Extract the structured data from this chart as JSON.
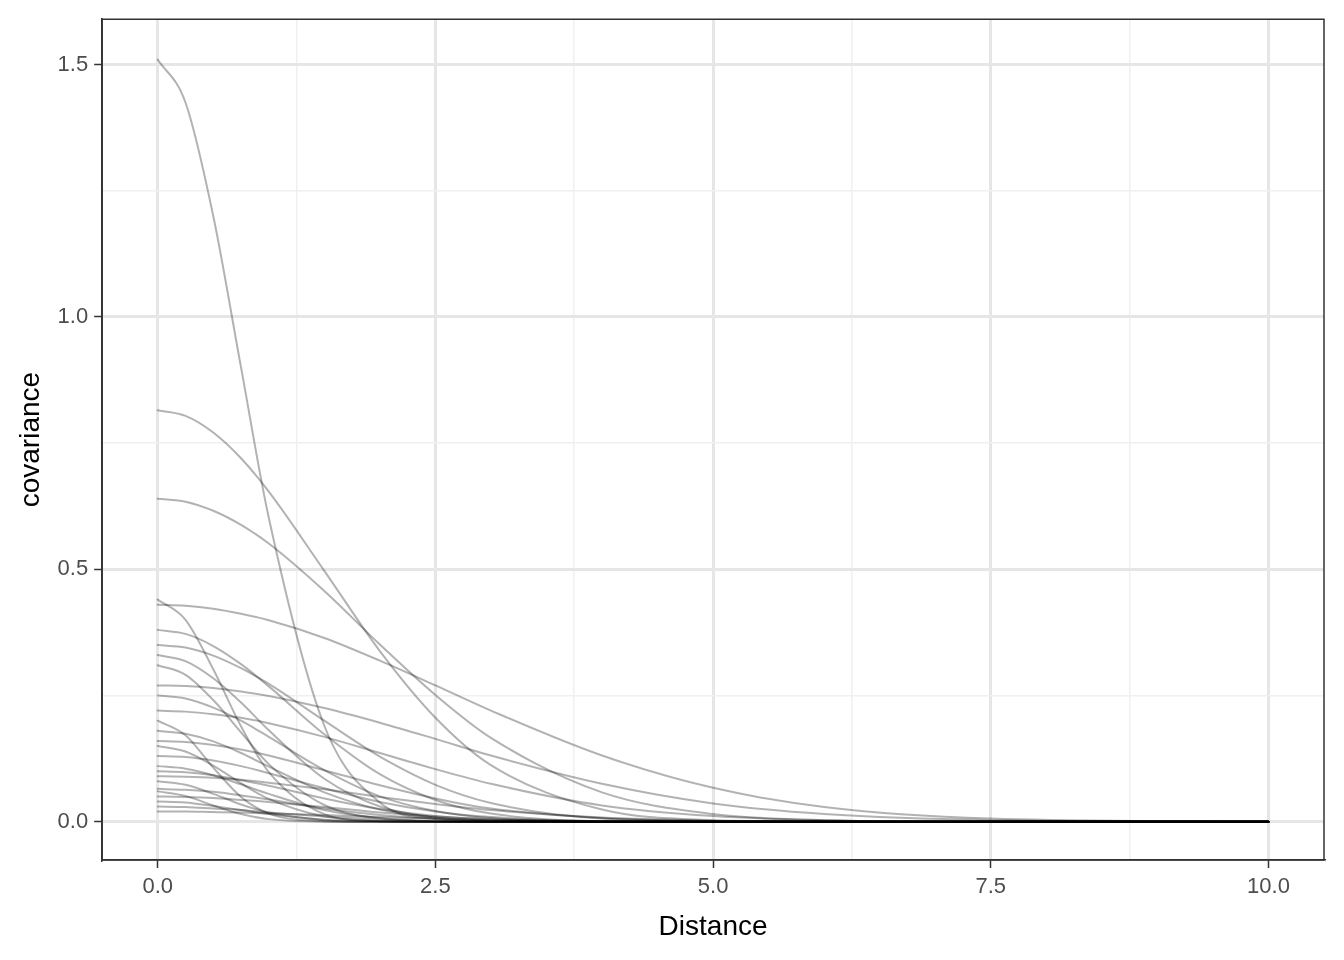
{
  "chart_data": {
    "type": "line",
    "xlabel": "Distance",
    "ylabel": "covariance",
    "x": [
      0,
      0.25,
      0.5,
      0.75,
      1,
      1.5,
      2,
      2.5,
      3,
      4,
      5,
      6,
      7.5,
      10
    ],
    "xlim": [
      -0.5,
      10.5
    ],
    "ylim": [
      -0.076,
      1.59
    ],
    "xticks": [
      {
        "value": 0,
        "label": "0.0"
      },
      {
        "value": 1.25,
        "label": null
      },
      {
        "value": 2.5,
        "label": "2.5"
      },
      {
        "value": 3.75,
        "label": null
      },
      {
        "value": 5,
        "label": "5.0"
      },
      {
        "value": 6.25,
        "label": null
      },
      {
        "value": 7.5,
        "label": "7.5"
      },
      {
        "value": 8.75,
        "label": null
      },
      {
        "value": 10,
        "label": "10.0"
      }
    ],
    "yticks": [
      {
        "value": 0,
        "label": "0.0"
      },
      {
        "value": 0.25,
        "label": null
      },
      {
        "value": 0.5,
        "label": "0.5"
      },
      {
        "value": 0.75,
        "label": null
      },
      {
        "value": 1,
        "label": "1.0"
      },
      {
        "value": 1.25,
        "label": null
      },
      {
        "value": 1.5,
        "label": "1.5"
      }
    ],
    "grid": true,
    "legend": false,
    "marker": "none",
    "line_style": "solid",
    "series": [
      {
        "color": "#000000",
        "values": [
          1.51,
          1.425,
          1.2,
          0.9,
          0.602,
          0.19,
          0.038,
          0.005,
          0,
          0,
          0,
          0,
          0,
          0
        ]
      },
      {
        "color": "#000000",
        "values": [
          0.815,
          0.804,
          0.771,
          0.72,
          0.654,
          0.497,
          0.338,
          0.206,
          0.112,
          0.024,
          0.003,
          0,
          0,
          0
        ]
      },
      {
        "color": "#000000",
        "values": [
          0.64,
          0.634,
          0.616,
          0.588,
          0.551,
          0.457,
          0.351,
          0.251,
          0.166,
          0.058,
          0.015,
          0.003,
          0,
          0
        ]
      },
      {
        "color": "#000000",
        "values": [
          0.43,
          0.428,
          0.422,
          0.412,
          0.399,
          0.364,
          0.319,
          0.27,
          0.22,
          0.131,
          0.067,
          0.029,
          0.006,
          0
        ]
      },
      {
        "color": "#000000",
        "values": [
          0.44,
          0.4,
          0.302,
          0.189,
          0.098,
          0.015,
          0.001,
          0,
          0,
          0,
          0,
          0,
          0,
          0
        ]
      },
      {
        "color": "#000000",
        "values": [
          0.38,
          0.372,
          0.348,
          0.312,
          0.268,
          0.173,
          0.094,
          0.043,
          0.016,
          0.001,
          0,
          0,
          0,
          0
        ]
      },
      {
        "color": "#000000",
        "values": [
          0.35,
          0.345,
          0.329,
          0.304,
          0.273,
          0.2,
          0.129,
          0.073,
          0.037,
          0.006,
          0.001,
          0,
          0,
          0
        ]
      },
      {
        "color": "#000000",
        "values": [
          0.33,
          0.318,
          0.284,
          0.236,
          0.181,
          0.085,
          0.03,
          0.008,
          0.001,
          0,
          0,
          0,
          0,
          0
        ]
      },
      {
        "color": "#000000",
        "values": [
          0.31,
          0.291,
          0.241,
          0.177,
          0.114,
          0.033,
          0.006,
          0.001,
          0,
          0,
          0,
          0,
          0,
          0
        ]
      },
      {
        "color": "#000000",
        "values": [
          0.27,
          0.269,
          0.265,
          0.258,
          0.249,
          0.225,
          0.196,
          0.164,
          0.131,
          0.075,
          0.036,
          0.015,
          0.003,
          0
        ]
      },
      {
        "color": "#000000",
        "values": [
          0.25,
          0.244,
          0.226,
          0.2,
          0.168,
          0.102,
          0.05,
          0.021,
          0.007,
          0,
          0,
          0,
          0,
          0
        ]
      },
      {
        "color": "#000000",
        "values": [
          0.22,
          0.218,
          0.213,
          0.206,
          0.195,
          0.168,
          0.136,
          0.104,
          0.075,
          0.032,
          0.011,
          0.003,
          0,
          0
        ]
      },
      {
        "color": "#000000",
        "values": [
          0.2,
          0.171,
          0.107,
          0.049,
          0.016,
          0.001,
          0,
          0,
          0,
          0,
          0,
          0,
          0,
          0
        ]
      },
      {
        "color": "#000000",
        "values": [
          0.18,
          0.174,
          0.159,
          0.136,
          0.109,
          0.058,
          0.024,
          0.008,
          0.002,
          0,
          0,
          0,
          0,
          0
        ]
      },
      {
        "color": "#000000",
        "values": [
          0.16,
          0.158,
          0.152,
          0.143,
          0.131,
          0.102,
          0.072,
          0.046,
          0.026,
          0.007,
          0.001,
          0,
          0,
          0
        ]
      },
      {
        "color": "#000000",
        "values": [
          0.15,
          0.139,
          0.111,
          0.076,
          0.045,
          0.01,
          0.001,
          0,
          0,
          0,
          0,
          0,
          0,
          0
        ]
      },
      {
        "color": "#000000",
        "values": [
          0.13,
          0.128,
          0.121,
          0.11,
          0.096,
          0.066,
          0.039,
          0.02,
          0.009,
          0.001,
          0,
          0,
          0,
          0
        ]
      },
      {
        "color": "#000000",
        "values": [
          0.11,
          0.105,
          0.092,
          0.074,
          0.055,
          0.023,
          0.007,
          0.001,
          0,
          0,
          0,
          0,
          0,
          0
        ]
      },
      {
        "color": "#000000",
        "values": [
          0.1,
          0.098,
          0.092,
          0.082,
          0.071,
          0.046,
          0.025,
          0.011,
          0.004,
          0,
          0,
          0,
          0,
          0
        ]
      },
      {
        "color": "#000000",
        "values": [
          0.09,
          0.089,
          0.087,
          0.083,
          0.077,
          0.064,
          0.049,
          0.035,
          0.023,
          0.008,
          0.002,
          0,
          0,
          0
        ]
      },
      {
        "color": "#000000",
        "values": [
          0.08,
          0.073,
          0.055,
          0.034,
          0.018,
          0.003,
          0,
          0,
          0,
          0,
          0,
          0,
          0,
          0
        ]
      },
      {
        "color": "#000000",
        "values": [
          0.065,
          0.063,
          0.059,
          0.052,
          0.044,
          0.026,
          0.013,
          0.005,
          0.002,
          0,
          0,
          0,
          0,
          0
        ]
      },
      {
        "color": "#000000",
        "values": [
          0.06,
          0.051,
          0.032,
          0.015,
          0.005,
          0,
          0,
          0,
          0,
          0,
          0,
          0,
          0,
          0
        ]
      },
      {
        "color": "#000000",
        "values": [
          0.05,
          0.049,
          0.047,
          0.043,
          0.039,
          0.029,
          0.018,
          0.01,
          0.005,
          0.001,
          0,
          0,
          0,
          0
        ]
      },
      {
        "color": "#000000",
        "values": [
          0.04,
          0.038,
          0.031,
          0.023,
          0.015,
          0.004,
          0.001,
          0,
          0,
          0,
          0,
          0,
          0,
          0
        ]
      },
      {
        "color": "#000000",
        "values": [
          0.03,
          0.029,
          0.026,
          0.023,
          0.018,
          0.01,
          0.004,
          0.001,
          0,
          0,
          0,
          0,
          0,
          0
        ]
      },
      {
        "color": "#000000",
        "values": [
          0.02,
          0.02,
          0.019,
          0.018,
          0.016,
          0.013,
          0.009,
          0.006,
          0.003,
          0.001,
          0,
          0,
          0,
          0
        ]
      }
    ]
  }
}
